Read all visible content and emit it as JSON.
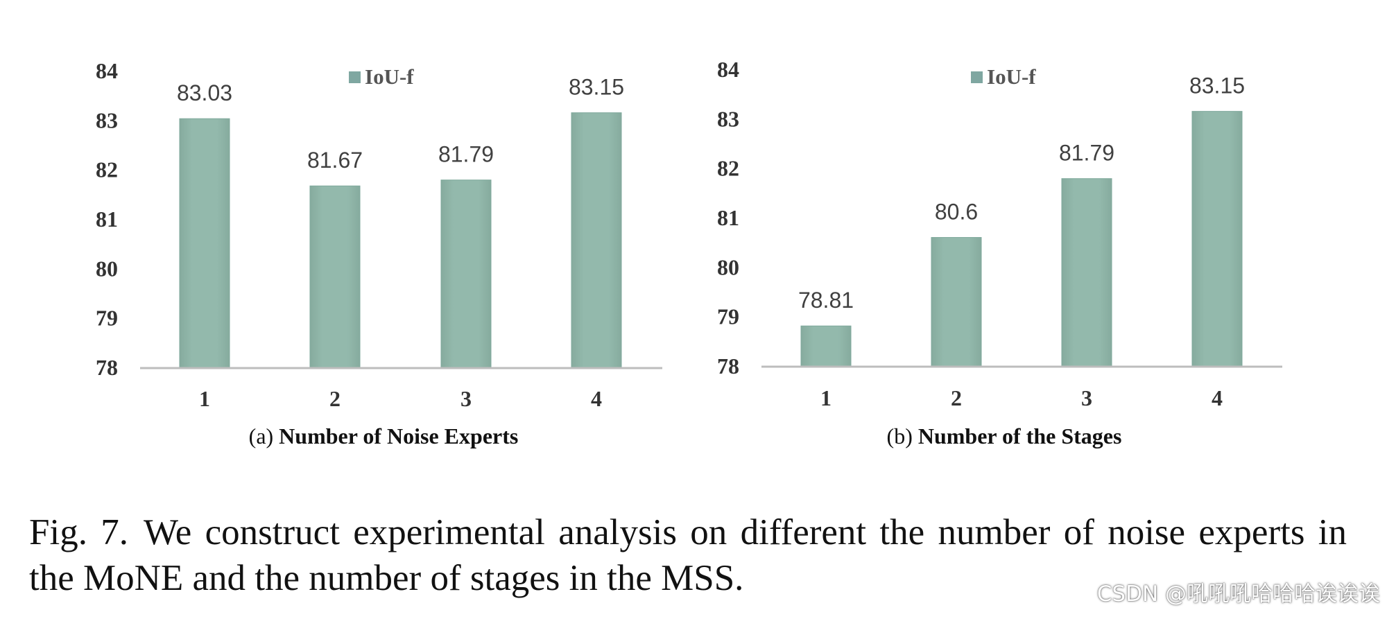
{
  "chart_data": [
    {
      "type": "bar",
      "legend_label": "IoU-f",
      "legend_position": "top-center",
      "categories": [
        "1",
        "2",
        "3",
        "4"
      ],
      "values": [
        83.03,
        81.67,
        81.79,
        83.15
      ],
      "data_labels": [
        "83.03",
        "81.67",
        "81.79",
        "83.15"
      ],
      "ylim": [
        78,
        84
      ],
      "yticks": [
        "78",
        "79",
        "80",
        "81",
        "82",
        "83",
        "84"
      ],
      "grid": false,
      "xlabel_prefix": "(a) ",
      "xlabel_bold": "Number of Noise Experts"
    },
    {
      "type": "bar",
      "legend_label": "IoU-f",
      "legend_position": "top-center",
      "categories": [
        "1",
        "2",
        "3",
        "4"
      ],
      "values": [
        78.81,
        80.6,
        81.79,
        83.15
      ],
      "data_labels": [
        "78.81",
        "80.6",
        "81.79",
        "83.15"
      ],
      "ylim": [
        78,
        84
      ],
      "yticks": [
        "78",
        "79",
        "80",
        "81",
        "82",
        "83",
        "84"
      ],
      "grid": false,
      "xlabel_prefix": "(b) ",
      "xlabel_bold": "Number of the Stages"
    }
  ],
  "colors": {
    "bar": "#93b9ac",
    "bar_edge": "#7fa99c",
    "legend_swatch": "#7fa7a1",
    "axis": "#bdbdbd",
    "data_label": "#404040",
    "tick": "#333333"
  },
  "caption": {
    "label": "Fig. 7.",
    "text": "We construct experimental analysis on different the number of noise experts in the MoNE and the number of stages in the MSS."
  },
  "watermark": "CSDN @吼吼吼哈哈哈诶诶诶"
}
